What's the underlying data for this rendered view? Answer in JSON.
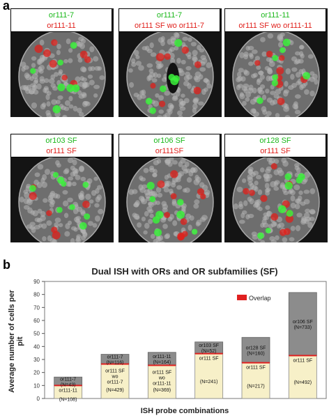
{
  "panel_a_letter": "a",
  "panel_b_letter": "b",
  "tiles": [
    {
      "green": "or111-7",
      "red": "or111-11"
    },
    {
      "green": "or111-7",
      "red": "or111 SF wo or111-7"
    },
    {
      "green": "or111-11",
      "red": "or111 SF wo or111-11"
    },
    {
      "green": "or103 SF",
      "red": "or111 SF"
    },
    {
      "green": "or106 SF",
      "red": "or111SF"
    },
    {
      "green": "or128 SF",
      "red": "or111 SF"
    }
  ],
  "colors": {
    "green": "#1bb81b",
    "red": "#e0201b",
    "bar_bottom": "#f7f0c8",
    "bar_top": "#8c8c8c",
    "overlap": "#e02020"
  },
  "chart_data": {
    "type": "bar",
    "title": "Dual ISH with ORs and OR subfamilies (SF)",
    "xlabel": "ISH probe combinations",
    "ylabel": "Average number of cells per pit",
    "ylim": [
      0,
      90
    ],
    "yticks": [
      0,
      10,
      20,
      30,
      40,
      50,
      60,
      70,
      80,
      90
    ],
    "legend": {
      "label": "Overlap",
      "position": "top-right"
    },
    "bars": [
      {
        "bottom_label": "or111-11",
        "bottom_n": "(N=108)",
        "bottom_value": 10,
        "top_label": "or111-7",
        "top_n": "(N=43)",
        "top_value": 6.5
      },
      {
        "bottom_label": "or111 SF wo or111-7",
        "bottom_n": "(N=429)",
        "bottom_value": 26.5,
        "top_label": "or111-7",
        "top_n": "(N=116)",
        "top_value": 7.5
      },
      {
        "bottom_label": "or111 SF wo or111-11",
        "bottom_n": "(N=369)",
        "bottom_value": 25.5,
        "top_label": "or111-11",
        "top_n": "(N=164)",
        "top_value": 10
      },
      {
        "bottom_label": "or111 SF",
        "bottom_n": "(N=241)",
        "bottom_value": 34.5,
        "top_label": "or103 SF",
        "top_n": "(N=52)",
        "top_value": 9
      },
      {
        "bottom_label": "or111 SF",
        "bottom_n": "(N=217)",
        "bottom_value": 27.5,
        "top_label": "or128 SF",
        "top_n": "(N=160)",
        "top_value": 19.5
      },
      {
        "bottom_label": "or111 SF",
        "bottom_n": "(N=492)",
        "bottom_value": 33,
        "top_label": "or106 SF",
        "top_n": "(N=733)",
        "top_value": 48.5
      }
    ]
  }
}
